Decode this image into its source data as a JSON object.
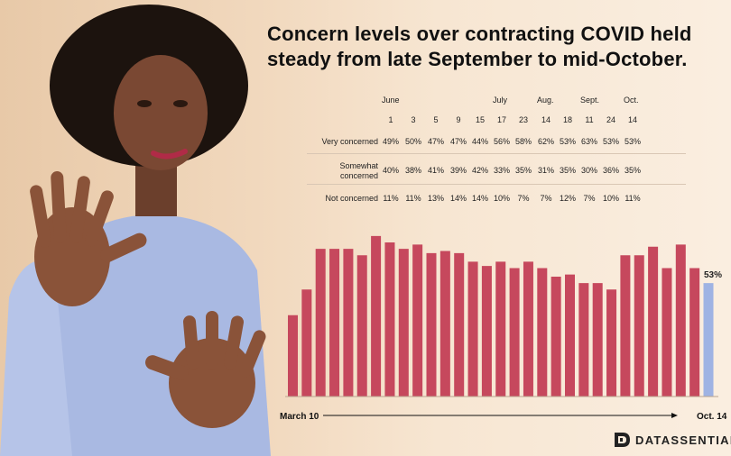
{
  "logo": {
    "text": "DATASSENTIAL"
  },
  "table": {
    "months": [
      {
        "label": "June",
        "col": 0
      },
      {
        "label": "July",
        "col": 5
      },
      {
        "label": "Aug.",
        "col": 7
      },
      {
        "label": "Sept.",
        "col": 9
      },
      {
        "label": "Oct.",
        "col": 11
      }
    ],
    "days": [
      "1",
      "3",
      "5",
      "9",
      "15",
      "17",
      "23",
      "14",
      "18",
      "11",
      "24",
      "14"
    ],
    "rows": [
      {
        "label": "Very concerned",
        "values": [
          "49%",
          "50%",
          "47%",
          "47%",
          "44%",
          "56%",
          "58%",
          "62%",
          "53%",
          "63%",
          "53%",
          "53%"
        ]
      },
      {
        "label": "Somewhat concerned",
        "values": [
          "40%",
          "38%",
          "41%",
          "39%",
          "42%",
          "33%",
          "35%",
          "31%",
          "35%",
          "30%",
          "36%",
          "35%"
        ]
      },
      {
        "label": "Not concerned",
        "values": [
          "11%",
          "11%",
          "13%",
          "14%",
          "14%",
          "10%",
          "7%",
          "7%",
          "12%",
          "7%",
          "10%",
          "11%"
        ]
      }
    ]
  },
  "chart_data": {
    "type": "bar",
    "title": "Concern levels over contracting COVID held steady from late September to mid-October.",
    "x_start_label": "March 10",
    "x_end_label": "Oct. 14",
    "values": [
      38,
      50,
      69,
      69,
      69,
      66,
      75,
      72,
      69,
      71,
      67,
      68,
      67,
      63,
      61,
      63,
      60,
      63,
      60,
      56,
      57,
      53,
      53,
      50,
      66,
      66,
      70,
      60,
      71,
      60,
      53
    ],
    "highlight_last": true,
    "last_label": "53%",
    "ylim": [
      0,
      80
    ],
    "colors": {
      "bar": "#c6485d",
      "highlight": "#9fb3e3"
    },
    "grid": false
  }
}
